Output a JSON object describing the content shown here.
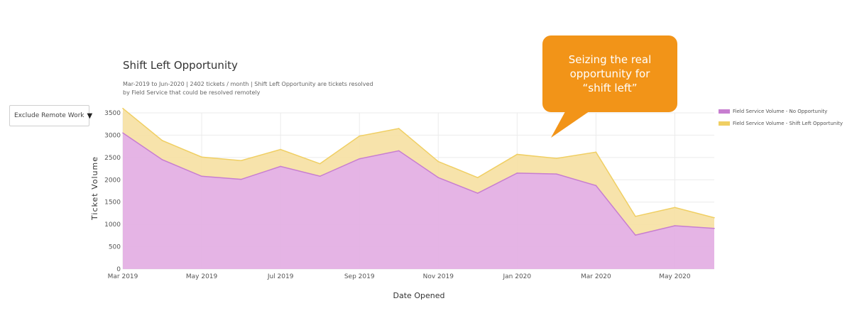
{
  "dropdown": {
    "selected": "Exclude Remote Work",
    "caret": "▼"
  },
  "callout": {
    "text": "Seizing the real opportunity for “shift left”"
  },
  "colors": {
    "no_opportunity_fill": "#e4b0e4",
    "no_opportunity_line": "#c77ed0",
    "shift_left_fill": "#f7e2a6",
    "shift_left_line": "#f0cf63",
    "callout": "#f29418"
  },
  "chart_data": {
    "type": "area",
    "title": "Shift Left Opportunity",
    "subtitle": "Mar-2019 to Jun-2020 | 2402 tickets / month | Shift Left Opportunity are tickets resolved by Field Service that could be resolved remotely",
    "xlabel": "Date Opened",
    "ylabel": "Ticket Volume",
    "x": [
      "2019-03",
      "2019-04",
      "2019-05",
      "2019-06",
      "2019-07",
      "2019-08",
      "2019-09",
      "2019-10",
      "2019-11",
      "2019-12",
      "2020-01",
      "2020-02",
      "2020-03",
      "2020-04",
      "2020-05",
      "2020-06"
    ],
    "x_tick_labels": [
      "Mar 2019",
      "May 2019",
      "Jul 2019",
      "Sep 2019",
      "Nov 2019",
      "Jan 2020",
      "Mar 2020",
      "May 2020"
    ],
    "x_tick_positions": [
      "2019-03",
      "2019-05",
      "2019-07",
      "2019-09",
      "2019-11",
      "2020-01",
      "2020-03",
      "2020-05"
    ],
    "y_ticks": [
      0,
      500,
      1000,
      1500,
      2000,
      2500,
      3000,
      3500
    ],
    "ylim": [
      0,
      3500
    ],
    "stacked": true,
    "grid": true,
    "legend_position": "top-right",
    "series": [
      {
        "name": "Field Service Volume - No Opportunity",
        "values": [
          3050,
          2450,
          2080,
          2010,
          2300,
          2080,
          2470,
          2650,
          2050,
          1700,
          2150,
          2130,
          1870,
          760,
          970,
          910
        ]
      },
      {
        "name": "Field Service Volume - Shift Left Opportunity",
        "values": [
          550,
          430,
          430,
          420,
          380,
          280,
          510,
          500,
          360,
          350,
          420,
          350,
          750,
          420,
          410,
          240
        ]
      }
    ]
  }
}
